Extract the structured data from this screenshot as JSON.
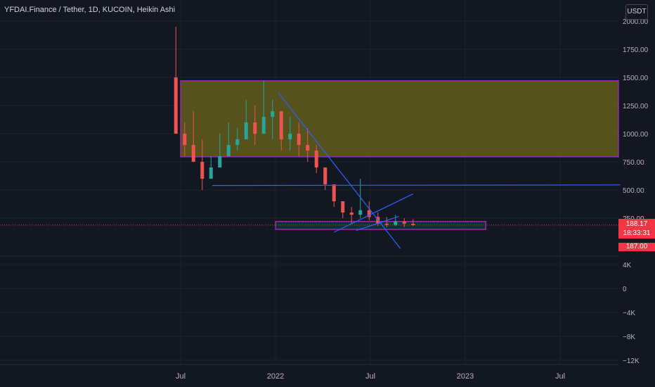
{
  "header": {
    "title": "YFDAI.Finance / Tether, 1D, KUCOIN, Heikin Ashi",
    "currency": "USDT"
  },
  "price_tag": {
    "price": "188.17",
    "countdown": "18:33:31",
    "low": "187.00"
  },
  "colors": {
    "background": "#131722",
    "up": "#26a69a",
    "down": "#ef5350",
    "zone_fill": "#615d1a",
    "zone_border": "#9c27b0",
    "trendline": "#2962ff",
    "price_line": "#f23645"
  },
  "chart_data": [
    {
      "type": "candlestick",
      "title": "YFDAI.Finance / Tether, 1D, KUCOIN, Heikin Ashi",
      "x_ticks": [
        "Jul",
        "2022",
        "Jul",
        "2023",
        "Jul"
      ],
      "y_ticks": [
        "2000.00",
        "1750.00",
        "1500.00",
        "1250.00",
        "1000.00",
        "750.00",
        "500.00",
        "250.00"
      ],
      "ylim": [
        0,
        2000
      ],
      "last_price": 188.17,
      "grid": true,
      "series": [
        {
          "values": [
            [
              1950,
              1500,
              1000
            ],
            [
              1100,
              800,
              900
            ],
            [
              1200,
              900,
              750
            ],
            [
              950,
              500,
              600
            ],
            [
              800,
              650,
              700
            ],
            [
              1000,
              700,
              800
            ],
            [
              1100,
              800,
              900
            ],
            [
              1050,
              850,
              950
            ],
            [
              1300,
              950,
              1100
            ],
            [
              1250,
              900,
              1000
            ],
            [
              1470,
              1000,
              1150
            ],
            [
              1300,
              950,
              1200
            ],
            [
              1200,
              850,
              950
            ],
            [
              1150,
              850,
              1000
            ],
            [
              1100,
              800,
              900
            ],
            [
              1050,
              750,
              850
            ],
            [
              900,
              650,
              700
            ],
            [
              700,
              500,
              550
            ],
            [
              550,
              350,
              400
            ],
            [
              400,
              250,
              300
            ],
            [
              350,
              200,
              280
            ],
            [
              600,
              250,
              320
            ],
            [
              400,
              230,
              260
            ],
            [
              300,
              180,
              200
            ],
            [
              260,
              170,
              190
            ],
            [
              280,
              180,
              220
            ],
            [
              250,
              170,
              200
            ],
            [
              240,
              180,
              188
            ]
          ]
        }
      ],
      "zones": [
        {
          "from": "Jul",
          "to": "right edge",
          "low": 795,
          "high": 1470
        },
        {
          "from": "2022",
          "to": "Feb 2023",
          "low": 150,
          "high": 220
        }
      ],
      "lines": [
        {
          "points": [
            [
              2.0,
              540
            ],
            [
              27.8,
              545
            ]
          ]
        },
        {
          "points": [
            [
              6.2,
              1360
            ],
            [
              13.9,
              -20
            ]
          ]
        },
        {
          "points": [
            [
              9.7,
              125
            ],
            [
              14.7,
              465
            ]
          ]
        },
        {
          "points": [
            [
              11.1,
              140
            ],
            [
              13.8,
              265
            ]
          ]
        }
      ]
    },
    {
      "type": "bar",
      "y_ticks": [
        "4K",
        "0",
        "−4K",
        "−8K",
        "−12K"
      ],
      "ylim": [
        -13000,
        6000
      ]
    }
  ]
}
